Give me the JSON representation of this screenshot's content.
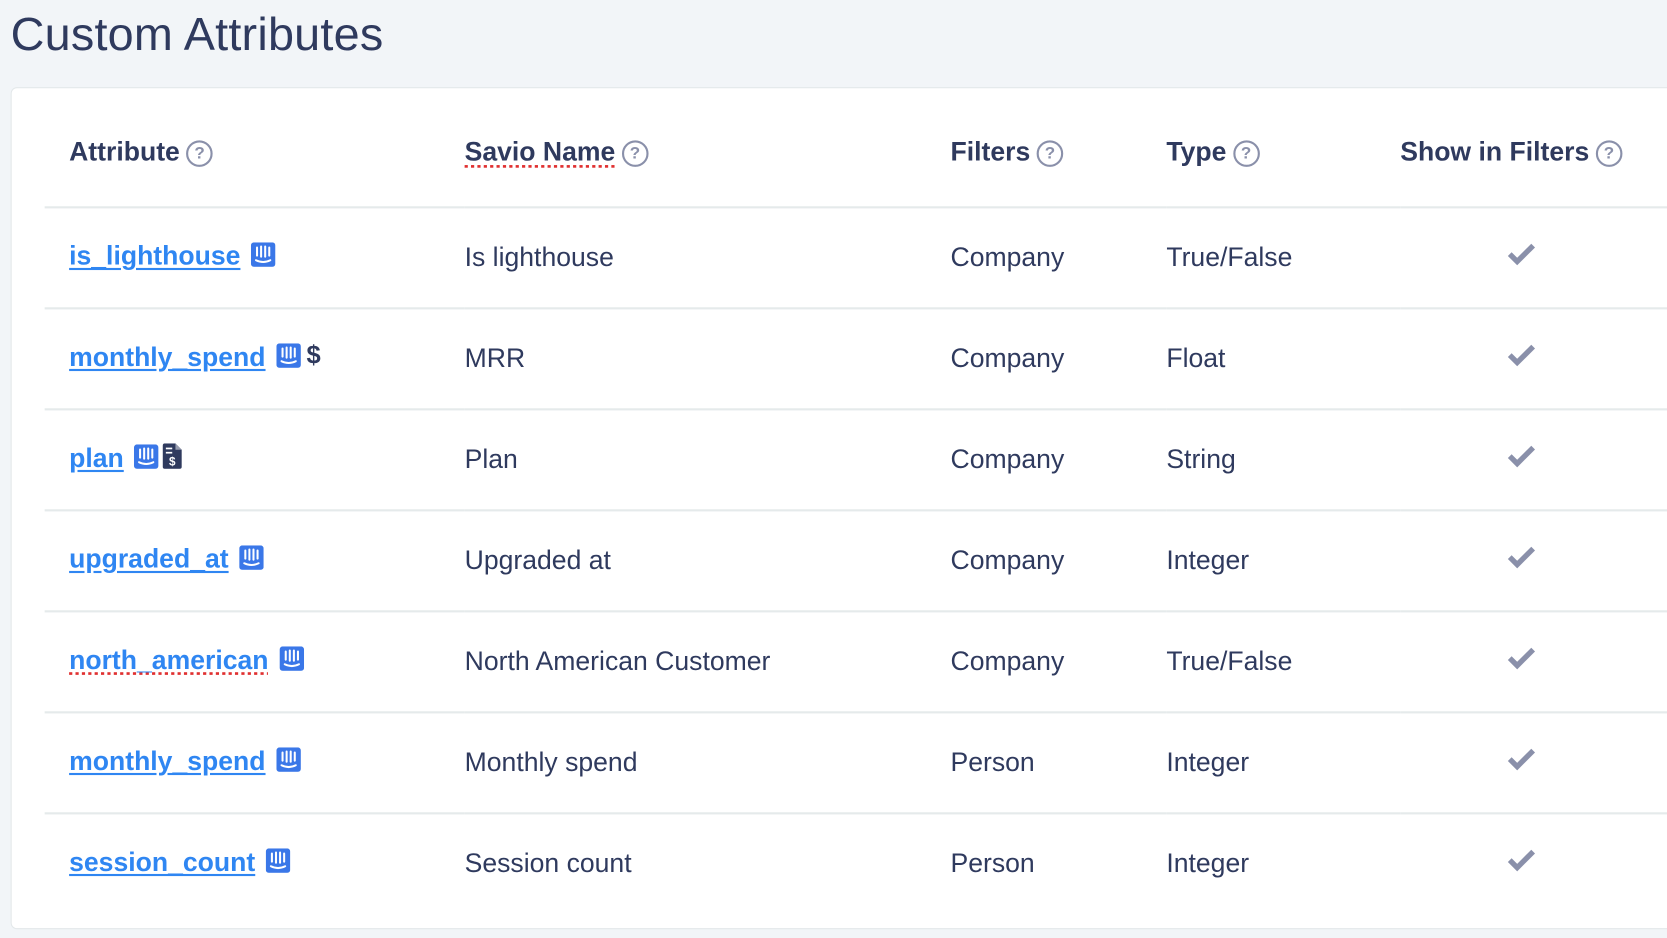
{
  "title": "Custom Attributes",
  "columns": [
    "Attribute",
    "Savio Name",
    "Filters",
    "Type",
    "Show in Filters"
  ],
  "help_icon": "question-circle-icon",
  "colors": {
    "link": "#2f86f2",
    "text": "#2f3a5e",
    "intercom": "#3a77e8",
    "check": "#8a90aa"
  },
  "rows": [
    {
      "attribute": "is_lighthouse",
      "icons": [
        "intercom-icon"
      ],
      "savio_name": "Is lighthouse",
      "filters": "Company",
      "type": "True/False",
      "show_in_filters": true
    },
    {
      "attribute": "monthly_spend",
      "icons": [
        "intercom-icon",
        "dollar-icon"
      ],
      "savio_name": "MRR",
      "filters": "Company",
      "type": "Float",
      "show_in_filters": true
    },
    {
      "attribute": "plan",
      "icons": [
        "intercom-icon",
        "invoice-icon"
      ],
      "savio_name": "Plan",
      "filters": "Company",
      "type": "String",
      "show_in_filters": true
    },
    {
      "attribute": "upgraded_at",
      "icons": [
        "intercom-icon"
      ],
      "savio_name": "Upgraded at",
      "filters": "Company",
      "type": "Integer",
      "show_in_filters": true
    },
    {
      "attribute": "north_american",
      "icons": [
        "intercom-icon"
      ],
      "savio_name": "North American Customer",
      "filters": "Company",
      "type": "True/False",
      "show_in_filters": true
    },
    {
      "attribute": "monthly_spend",
      "icons": [
        "intercom-icon"
      ],
      "savio_name": "Monthly spend",
      "filters": "Person",
      "type": "Integer",
      "show_in_filters": true
    },
    {
      "attribute": "session_count",
      "icons": [
        "intercom-icon"
      ],
      "savio_name": "Session count",
      "filters": "Person",
      "type": "Integer",
      "show_in_filters": true
    }
  ]
}
